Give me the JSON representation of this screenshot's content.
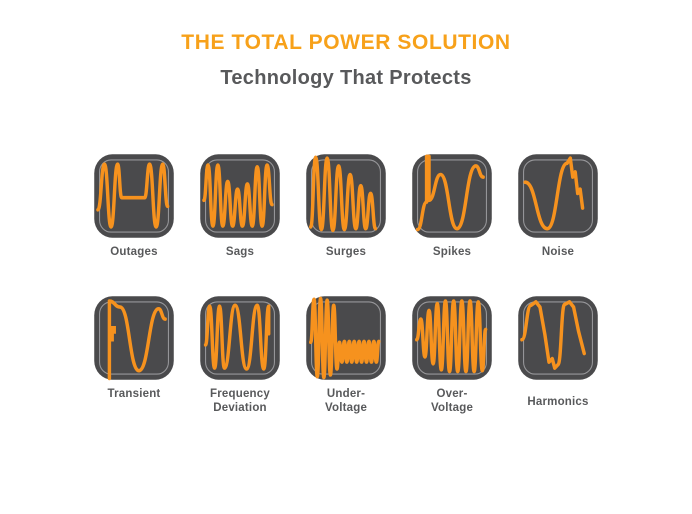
{
  "header": {
    "title": "THE TOTAL POWER SOLUTION",
    "subtitle": "Technology That Protects"
  },
  "colors": {
    "title_orange": "#F7A11A",
    "wave_orange": "#F6921E",
    "tile_gray": "#4A4A4C",
    "tile_inner_border": "#97979A",
    "label_gray": "#58595B",
    "background": "#FFFFFF"
  },
  "tiles": [
    {
      "id": "outages",
      "label": "Outages",
      "icon": "outages-waveform-icon"
    },
    {
      "id": "sags",
      "label": "Sags",
      "icon": "sags-waveform-icon"
    },
    {
      "id": "surges",
      "label": "Surges",
      "icon": "surges-waveform-icon"
    },
    {
      "id": "spikes",
      "label": "Spikes",
      "icon": "spikes-waveform-icon"
    },
    {
      "id": "noise",
      "label": "Noise",
      "icon": "noise-waveform-icon"
    },
    {
      "id": "transient",
      "label": "Transient",
      "icon": "transient-waveform-icon"
    },
    {
      "id": "frequency-deviation",
      "label": "Frequency\nDeviation",
      "icon": "frequency-deviation-waveform-icon"
    },
    {
      "id": "under-voltage",
      "label": "Under-\nVoltage",
      "icon": "under-voltage-waveform-icon"
    },
    {
      "id": "over-voltage",
      "label": "Over-\nVoltage",
      "icon": "over-voltage-waveform-icon"
    },
    {
      "id": "harmonics",
      "label": "Harmonics",
      "icon": "harmonics-waveform-icon"
    }
  ]
}
